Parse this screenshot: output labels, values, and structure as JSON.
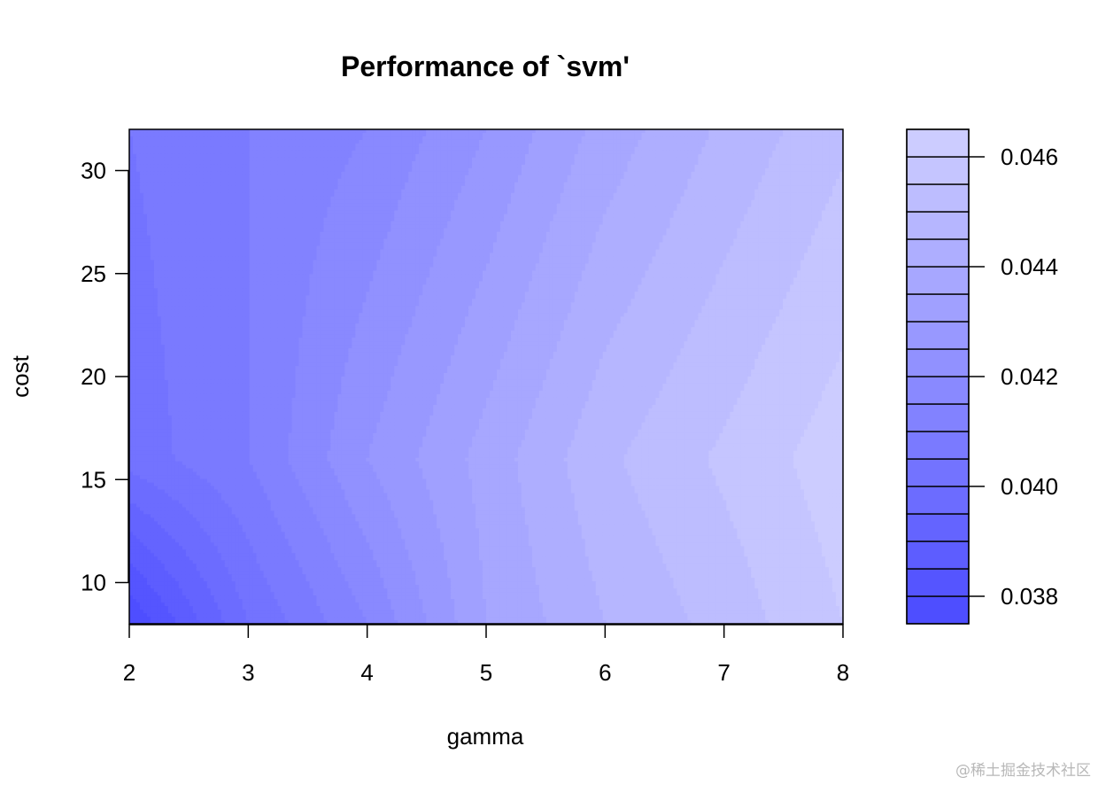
{
  "chart_data": {
    "type": "heatmap",
    "subtype": "filled-contour",
    "title": "Performance of `svm'",
    "xlabel": "gamma",
    "ylabel": "cost",
    "x": [
      2,
      3,
      4,
      5,
      6,
      7,
      8
    ],
    "y": [
      8,
      16,
      32
    ],
    "xlim": [
      2,
      8
    ],
    "ylim": [
      8,
      32
    ],
    "xticks": [
      "2",
      "3",
      "4",
      "5",
      "6",
      "7",
      "8"
    ],
    "yticks": [
      10,
      15,
      20,
      25,
      30
    ],
    "yticklabels": [
      "10",
      "15",
      "20",
      "25",
      "30"
    ],
    "z": [
      [
        0.0375,
        0.04,
        0.0415,
        0.0435,
        0.0445,
        0.0452,
        0.046
      ],
      [
        0.0402,
        0.041,
        0.0425,
        0.0437,
        0.0449,
        0.0456,
        0.0463
      ],
      [
        0.0405,
        0.041,
        0.0415,
        0.0425,
        0.0437,
        0.0446,
        0.0454
      ]
    ],
    "levels": [
      0.0375,
      0.038,
      0.0385,
      0.039,
      0.0395,
      0.04,
      0.0405,
      0.041,
      0.0415,
      0.042,
      0.0425,
      0.043,
      0.0435,
      0.044,
      0.0445,
      0.045,
      0.0455,
      0.046,
      0.0465
    ],
    "color_low": "#4a4aff",
    "color_high": "#d0d0ff",
    "legend": {
      "position": "right",
      "ticks": [
        0.038,
        0.04,
        0.042,
        0.044,
        0.046
      ],
      "ticklabels": [
        "0.038",
        "0.040",
        "0.042",
        "0.044",
        "0.046"
      ]
    }
  },
  "watermark": "@稀土掘金技术社区"
}
